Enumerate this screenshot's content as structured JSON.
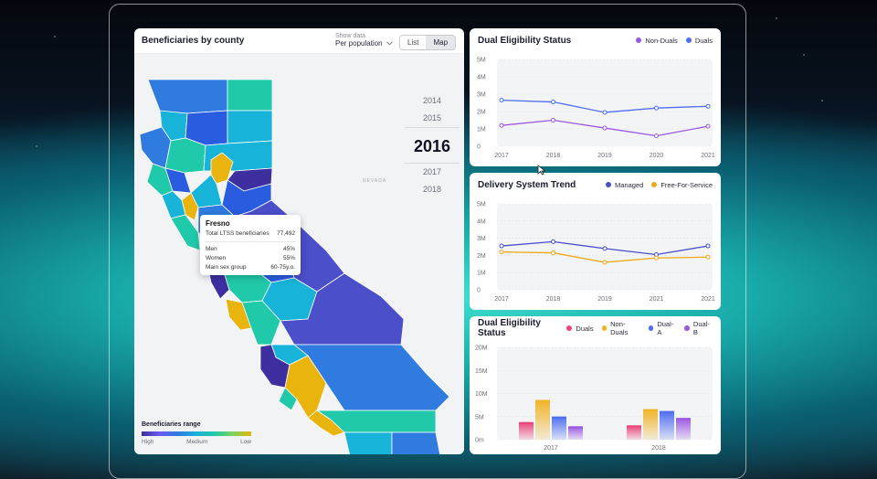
{
  "map_panel": {
    "title": "Beneficiaries by county",
    "show_data_label": "Show data",
    "show_data_value": "Per population",
    "view_list": "List",
    "view_map": "Map",
    "years": [
      "2014",
      "2015",
      "2016",
      "2017",
      "2018"
    ],
    "selected_year": "2016",
    "state_label": "NEVADA",
    "tooltip": {
      "county": "Fresno",
      "total_label": "Total LTSS beneficiaries",
      "total_value": "77,492",
      "rows": [
        {
          "label": "Men",
          "value": "45%"
        },
        {
          "label": "Women",
          "value": "55%"
        },
        {
          "label": "Main sex group",
          "value": "60-75y.o."
        }
      ]
    },
    "legend": {
      "title": "Beneficiaries range",
      "high": "High",
      "medium": "Medium",
      "low": "Low"
    }
  },
  "chart_data": [
    {
      "type": "line",
      "title": "Dual Eligibility Status",
      "x": [
        "2017",
        "2018",
        "2019",
        "2020",
        "2021"
      ],
      "ylim": [
        0,
        5000000
      ],
      "yticks": [
        "0",
        "1M",
        "2M",
        "3M",
        "4M",
        "5M"
      ],
      "legend_position": "top-right",
      "series": [
        {
          "name": "Non-Duals",
          "color": "#9b59e0",
          "values": [
            1200000,
            1500000,
            1050000,
            600000,
            1150000
          ]
        },
        {
          "name": "Duals",
          "color": "#4f6ff0",
          "values": [
            2650000,
            2550000,
            1950000,
            2200000,
            2300000
          ]
        }
      ]
    },
    {
      "type": "line",
      "title": "Delivery System Trend",
      "x": [
        "2017",
        "2018",
        "2019",
        "2021",
        "2021"
      ],
      "ylim": [
        0,
        5000000
      ],
      "yticks": [
        "0",
        "1M",
        "2M",
        "3M",
        "4M",
        "5M"
      ],
      "legend_position": "top-right",
      "series": [
        {
          "name": "Managed",
          "color": "#4b4fc9",
          "values": [
            2550000,
            2800000,
            2400000,
            2050000,
            2550000
          ]
        },
        {
          "name": "Free-For-Service",
          "color": "#f0a818",
          "values": [
            2200000,
            2150000,
            1600000,
            1850000,
            1900000
          ]
        }
      ]
    },
    {
      "type": "bar",
      "title": "Dual Eligibility Status",
      "categories": [
        "2017",
        "2018"
      ],
      "ylim": [
        0,
        20000000
      ],
      "yticks": [
        "0m",
        "5M",
        "10M",
        "15M",
        "20M"
      ],
      "legend_position": "top-right",
      "series": [
        {
          "name": "Duals",
          "color": "#e9467a",
          "values": [
            3800000,
            3100000
          ]
        },
        {
          "name": "Non-Duals",
          "color": "#f0b428",
          "values": [
            8600000,
            6600000
          ]
        },
        {
          "name": "Dual-A",
          "color": "#4f6ff0",
          "values": [
            5000000,
            6200000
          ]
        },
        {
          "name": "Dual-B",
          "color": "#9b59e0",
          "values": [
            2900000,
            4700000
          ]
        }
      ]
    }
  ]
}
